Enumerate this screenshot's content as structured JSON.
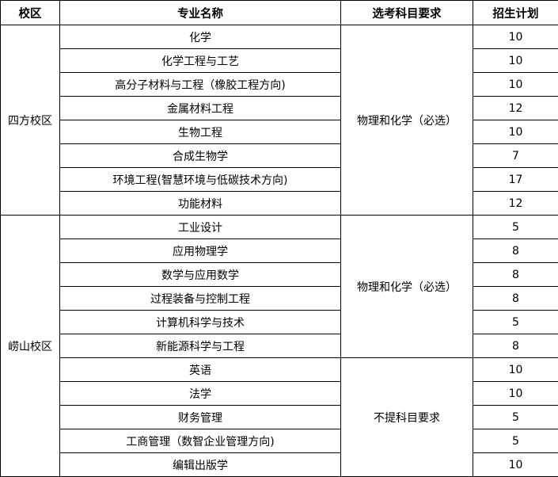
{
  "header": {
    "campus": "校区",
    "major": "专业名称",
    "requirement": "选考科目要求",
    "plan": "招生计划"
  },
  "groups": [
    {
      "campus": "四方校区",
      "requirement_groups": [
        {
          "requirement": "物理和化学（必选）",
          "rows": [
            {
              "major": "化学",
              "plan": "10"
            },
            {
              "major": "化学工程与工艺",
              "plan": "10"
            },
            {
              "major": "高分子材料与工程（橡胶工程方向)",
              "plan": "10"
            },
            {
              "major": "金属材料工程",
              "plan": "12"
            },
            {
              "major": "生物工程",
              "plan": "10"
            },
            {
              "major": "合成生物学",
              "plan": "7"
            },
            {
              "major": "环境工程(智慧环境与低碳技术方向)",
              "plan": "17"
            },
            {
              "major": "功能材料",
              "plan": "12"
            }
          ]
        }
      ]
    },
    {
      "campus": "崂山校区",
      "requirement_groups": [
        {
          "requirement": "物理和化学（必选）",
          "rows": [
            {
              "major": "工业设计",
              "plan": "5"
            },
            {
              "major": "应用物理学",
              "plan": "8"
            },
            {
              "major": "数学与应用数学",
              "plan": "8"
            },
            {
              "major": "过程装备与控制工程",
              "plan": "8"
            },
            {
              "major": "计算机科学与技术",
              "plan": "5"
            },
            {
              "major": "新能源科学与工程",
              "plan": "8"
            }
          ]
        },
        {
          "requirement": "不提科目要求",
          "rows": [
            {
              "major": "英语",
              "plan": "10"
            },
            {
              "major": "法学",
              "plan": "10"
            },
            {
              "major": "财务管理",
              "plan": "5"
            },
            {
              "major": "工商管理（数智企业管理方向)",
              "plan": "5"
            },
            {
              "major": "编辑出版学",
              "plan": "10"
            }
          ]
        }
      ]
    }
  ]
}
